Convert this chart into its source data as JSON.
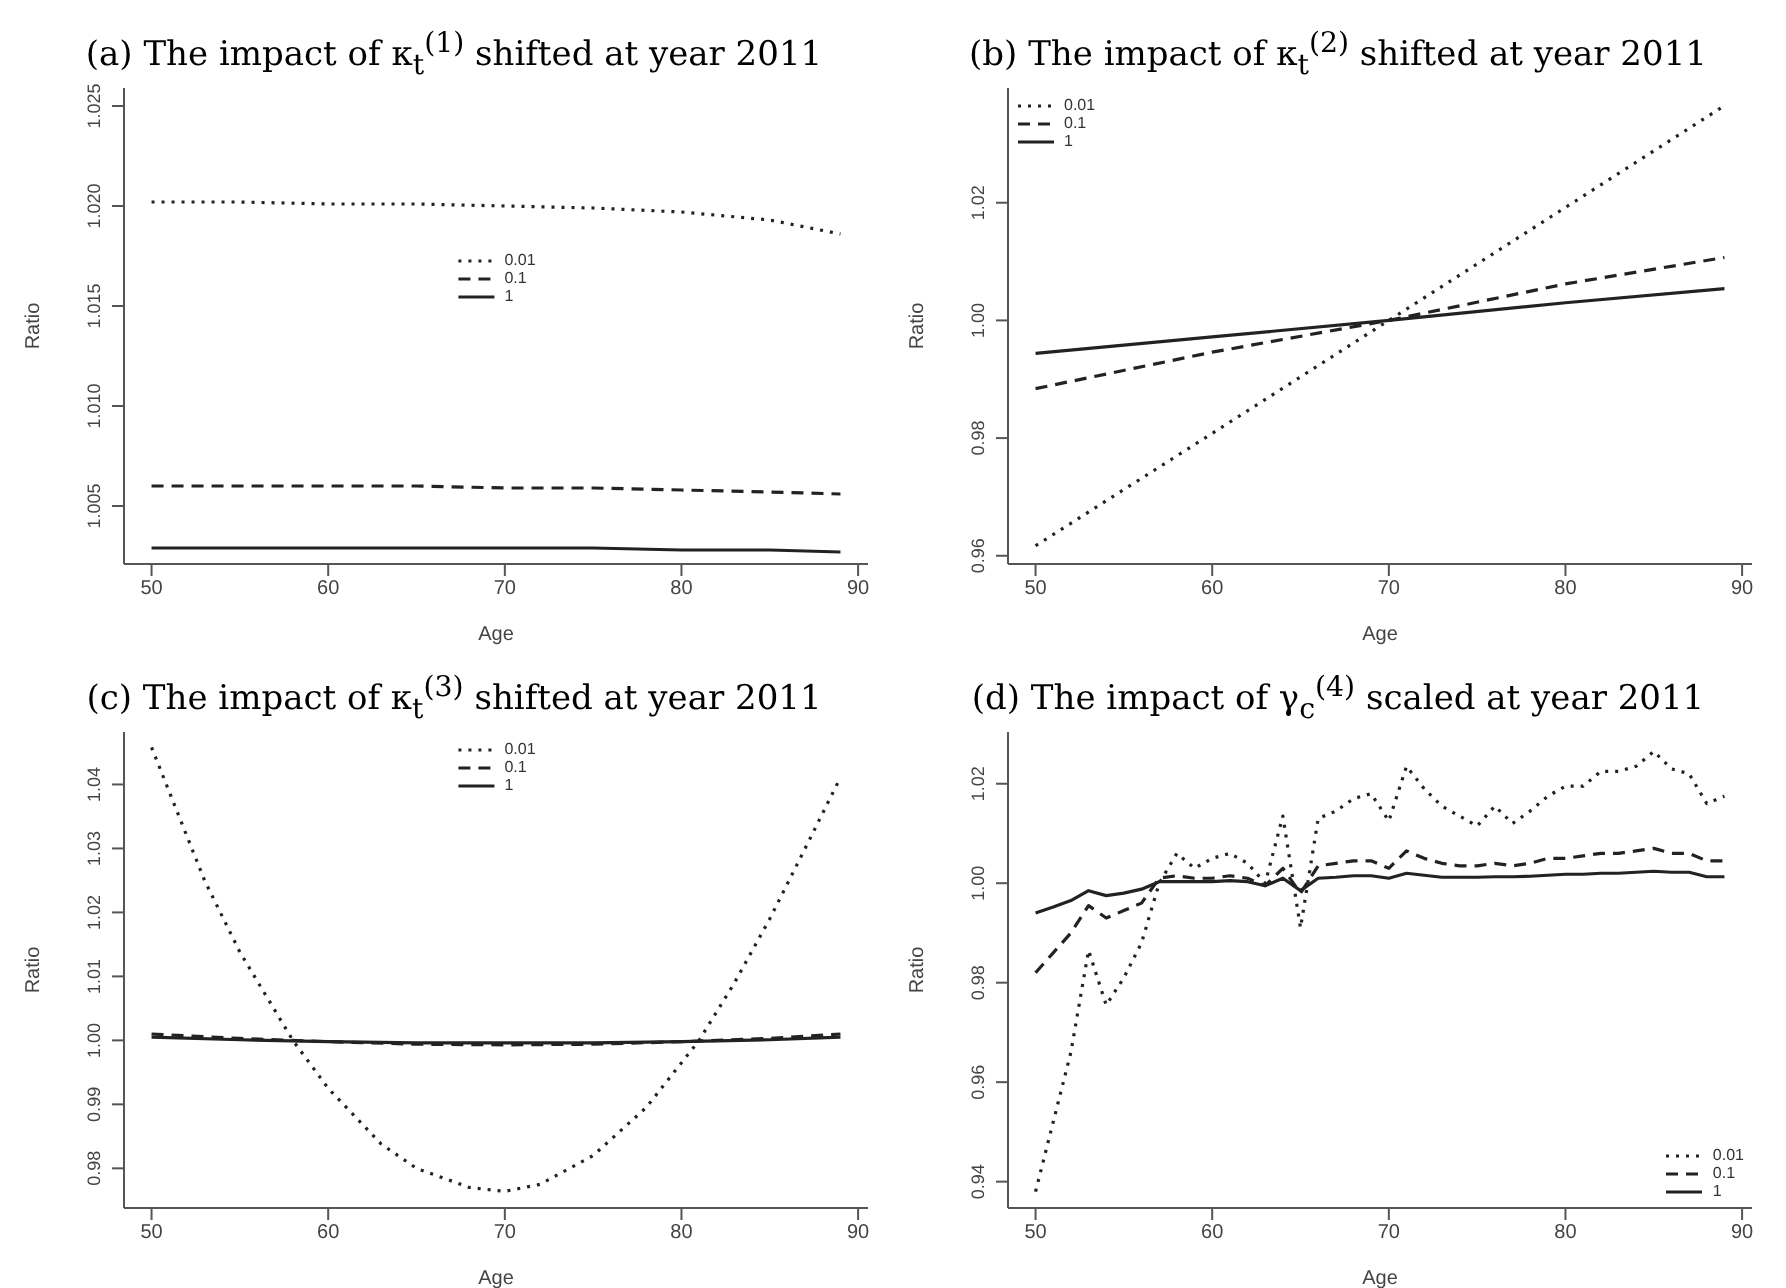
{
  "chart_data": [
    {
      "type": "line",
      "title": "(a) The impact of κ$_{t}$$^{(1)}$ shifted at year 2011",
      "xlabel": "Age",
      "ylabel": "Ratio",
      "xlim": [
        48.44,
        90.56
      ],
      "xticks": [
        50,
        60,
        70,
        80,
        90
      ],
      "ylim": [
        1.0021,
        1.0259
      ],
      "yticks": [
        1.005,
        {
          "value": 1.01,
          "label": "1.010"
        },
        1.015,
        {
          "value": 1.02,
          "label": "1.020"
        },
        1.025
      ],
      "grid": false,
      "legend": "center",
      "marker": "none",
      "series": [
        {
          "name": "0.01",
          "color": "#222222",
          "line_style": "dotted",
          "x": [
            50,
            55,
            60,
            65,
            70,
            75,
            80,
            85,
            89
          ],
          "values": [
            1.0202,
            1.0202,
            1.0201,
            1.0201,
            1.02,
            1.0199,
            1.0197,
            1.0193,
            1.0186
          ]
        },
        {
          "name": "0.1",
          "color": "#222222",
          "line_style": "dashed",
          "x": [
            50,
            55,
            60,
            65,
            70,
            75,
            80,
            85,
            89
          ],
          "values": [
            1.006,
            1.006,
            1.006,
            1.006,
            1.0059,
            1.0059,
            1.0058,
            1.0057,
            1.0056
          ]
        },
        {
          "name": "1",
          "color": "#222222",
          "line_style": "solid",
          "x": [
            50,
            55,
            60,
            65,
            70,
            75,
            80,
            85,
            89
          ],
          "values": [
            1.0029,
            1.0029,
            1.0029,
            1.0029,
            1.0029,
            1.0029,
            1.0028,
            1.0028,
            1.0027
          ]
        }
      ]
    },
    {
      "type": "line",
      "title": "(b) The impact of κ$_{t}$$^{(2)}$ shifted at year 2011",
      "xlabel": "Age",
      "ylabel": "Ratio",
      "xlim": [
        48.44,
        90.56
      ],
      "xticks": [
        50,
        60,
        70,
        80,
        90
      ],
      "ylim": [
        0.9586,
        1.0395
      ],
      "yticks": [
        0.96,
        0.98,
        {
          "value": 1.0,
          "label": "1.00"
        },
        1.02
      ],
      "grid": false,
      "legend": "top left",
      "marker": "none",
      "series": [
        {
          "name": "0.01",
          "color": "#222222",
          "line_style": "dotted",
          "x": [
            50,
            60,
            70,
            80,
            89
          ],
          "values": [
            0.9617,
            0.9808,
            1.0,
            1.0192,
            1.0365
          ]
        },
        {
          "name": "0.1",
          "color": "#222222",
          "line_style": "dashed",
          "x": [
            50,
            60,
            70,
            80,
            89
          ],
          "values": [
            0.9884,
            0.9946,
            1.0,
            1.0062,
            1.0107
          ]
        },
        {
          "name": "1",
          "color": "#222222",
          "line_style": "solid",
          "x": [
            50,
            60,
            70,
            80,
            89
          ],
          "values": [
            0.9944,
            0.9972,
            1.0,
            1.003,
            1.0054
          ]
        }
      ]
    },
    {
      "type": "line",
      "title": "(c) The impact of κ$_{t}$$^{(3)}$ shifted at year 2011",
      "xlabel": "Age",
      "ylabel": "Ratio",
      "xlim": [
        48.44,
        90.56
      ],
      "xticks": [
        50,
        60,
        70,
        80,
        90
      ],
      "ylim": [
        0.9738,
        1.0482
      ],
      "yticks": [
        0.98,
        0.99,
        {
          "value": 1.0,
          "label": "1.00"
        },
        1.01,
        1.02,
        1.03,
        1.04
      ],
      "grid": false,
      "legend": "top",
      "marker": "none",
      "series": [
        {
          "name": "0.01",
          "color": "#222222",
          "line_style": "dotted",
          "x": [
            50,
            53,
            55,
            58,
            60,
            63,
            65,
            68,
            70,
            72,
            75,
            78,
            81,
            83,
            85,
            87,
            89
          ],
          "values": [
            1.0458,
            1.025,
            1.0138,
            1.0,
            0.9925,
            0.9838,
            0.98,
            0.977,
            0.9764,
            0.9775,
            0.982,
            0.9895,
            1.0,
            1.009,
            1.019,
            1.03,
            1.0411
          ]
        },
        {
          "name": "0.1",
          "color": "#222222",
          "line_style": "dashed",
          "x": [
            50,
            55,
            60,
            65,
            70,
            75,
            80,
            85,
            89
          ],
          "values": [
            1.001,
            1.0003,
            0.9998,
            0.9994,
            0.9993,
            0.9994,
            0.9998,
            1.0003,
            1.001
          ]
        },
        {
          "name": "1",
          "color": "#222222",
          "line_style": "solid",
          "x": [
            50,
            55,
            60,
            65,
            70,
            75,
            80,
            85,
            89
          ],
          "values": [
            1.0005,
            1.0001,
            0.9998,
            0.9996,
            0.9996,
            0.9996,
            0.9998,
            1.0001,
            1.0005
          ]
        }
      ]
    },
    {
      "type": "line",
      "title": "(d) The impact of γ$_{c}$$^{(4)}$ scaled at year 2011",
      "xlabel": "Age",
      "ylabel": "Ratio",
      "xlim": [
        48.44,
        90.56
      ],
      "xticks": [
        50,
        60,
        70,
        80,
        90
      ],
      "ylim": [
        0.9347,
        1.0304
      ],
      "yticks": [
        0.94,
        0.96,
        0.98,
        {
          "value": 1.0,
          "label": "1.00"
        },
        1.02
      ],
      "grid": false,
      "legend": "bottom right",
      "marker": "none",
      "series": [
        {
          "name": "0.01",
          "color": "#222222",
          "line_style": "dotted",
          "x": [
            50,
            51,
            52,
            53,
            54,
            55,
            56,
            57,
            58,
            59,
            60,
            61,
            62,
            63,
            64,
            65,
            66,
            67,
            68,
            69,
            70,
            71,
            72,
            73,
            74,
            75,
            76,
            77,
            78,
            79,
            80,
            81,
            82,
            83,
            84,
            85,
            86,
            87,
            88,
            89
          ],
          "values": [
            0.938,
            0.952,
            0.966,
            0.9865,
            0.9755,
            0.981,
            0.988,
            1.0,
            1.006,
            1.003,
            1.005,
            1.006,
            1.004,
            1.0,
            1.0135,
            0.991,
            1.013,
            1.0145,
            1.017,
            1.018,
            1.0125,
            1.0235,
            1.019,
            1.0155,
            1.0135,
            1.0115,
            1.0155,
            1.012,
            1.0145,
            1.0175,
            1.0195,
            1.0195,
            1.0225,
            1.0225,
            1.0235,
            1.0265,
            1.023,
            1.022,
            1.016,
            1.0175
          ]
        },
        {
          "name": "0.1",
          "color": "#222222",
          "line_style": "dashed",
          "x": [
            50,
            51,
            52,
            53,
            54,
            55,
            56,
            57,
            58,
            59,
            60,
            61,
            62,
            63,
            64,
            65,
            66,
            67,
            68,
            69,
            70,
            71,
            72,
            73,
            74,
            75,
            76,
            77,
            78,
            79,
            80,
            81,
            82,
            83,
            84,
            85,
            86,
            87,
            88,
            89
          ],
          "values": [
            0.982,
            0.986,
            0.99,
            0.9955,
            0.993,
            0.9945,
            0.996,
            1.001,
            1.0015,
            1.001,
            1.001,
            1.0015,
            1.001,
            0.9995,
            1.003,
            0.998,
            1.0035,
            1.004,
            1.0045,
            1.0045,
            1.003,
            1.0065,
            1.005,
            1.004,
            1.0035,
            1.0035,
            1.004,
            1.0035,
            1.004,
            1.005,
            1.005,
            1.0055,
            1.006,
            1.006,
            1.0065,
            1.007,
            1.006,
            1.006,
            1.0045,
            1.0045
          ]
        },
        {
          "name": "1",
          "color": "#222222",
          "line_style": "solid",
          "x": [
            50,
            51,
            52,
            53,
            54,
            55,
            56,
            57,
            58,
            59,
            60,
            61,
            62,
            63,
            64,
            65,
            66,
            67,
            68,
            69,
            70,
            71,
            72,
            73,
            74,
            75,
            76,
            77,
            78,
            79,
            80,
            81,
            82,
            83,
            84,
            85,
            86,
            87,
            88,
            89
          ],
          "values": [
            0.994,
            0.9952,
            0.9965,
            0.9985,
            0.9975,
            0.998,
            0.9988,
            1.0003,
            1.0003,
            1.0003,
            1.0003,
            1.0005,
            1.0003,
            0.9995,
            1.001,
            0.9985,
            1.001,
            1.0012,
            1.0015,
            1.0015,
            1.001,
            1.002,
            1.0016,
            1.0012,
            1.0012,
            1.0012,
            1.0013,
            1.0013,
            1.0014,
            1.0016,
            1.0018,
            1.0018,
            1.002,
            1.002,
            1.0022,
            1.0024,
            1.0022,
            1.0022,
            1.0013,
            1.0013
          ]
        }
      ]
    }
  ]
}
